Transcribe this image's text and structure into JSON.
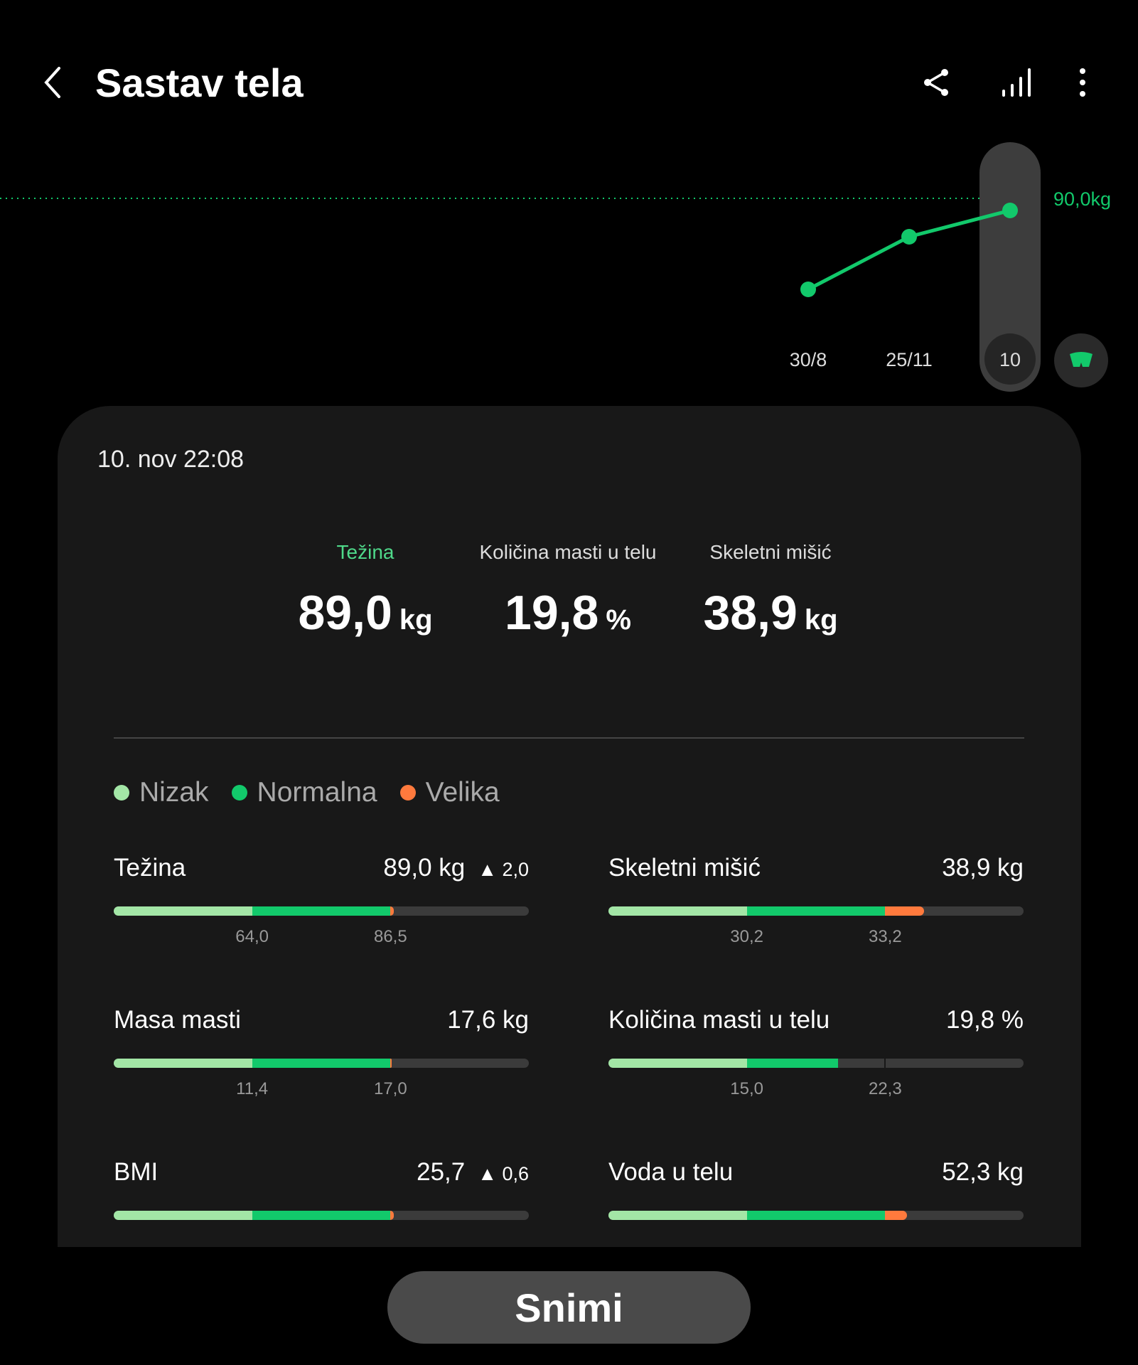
{
  "header": {
    "title": "Sastav tela",
    "icons": [
      "back-arrow-icon",
      "share-icon",
      "bar-chart-icon",
      "more-vertical-icon"
    ]
  },
  "chart_data": {
    "type": "line",
    "x": [
      "30/8",
      "25/11",
      "10"
    ],
    "selected": "10",
    "reference_label": "90,0kg",
    "reference": 90.0,
    "points_relative": "increasing",
    "color": "#12c96b"
  },
  "card": {
    "date": "10. nov 22:08",
    "summary": [
      {
        "label": "Težina",
        "value": "89,0",
        "unit": "kg",
        "active": true
      },
      {
        "label": "Količina masti u telu",
        "value": "19,8",
        "unit": "%"
      },
      {
        "label": "Skeletni mišić",
        "value": "38,9",
        "unit": "kg"
      }
    ],
    "legend": [
      {
        "label": "Nizak",
        "color": "#a3e6a6"
      },
      {
        "label": "Normalna",
        "color": "#12c96b"
      },
      {
        "label": "Velika",
        "color": "#ff7a3d"
      }
    ],
    "metrics": [
      {
        "name": "Težina",
        "value": "89,0 kg",
        "delta": "▲ 2,0",
        "fill": 0.675,
        "ticks": [
          "64,0",
          "86,5"
        ]
      },
      {
        "name": "Skeletni mišić",
        "value": "38,9 kg",
        "delta": "",
        "fill": 0.76,
        "ticks": [
          "30,2",
          "33,2"
        ]
      },
      {
        "name": "Masa masti",
        "value": "17,6 kg",
        "delta": "",
        "fill": 0.67,
        "ticks": [
          "11,4",
          "17,0"
        ]
      },
      {
        "name": "Količina masti u telu",
        "value": "19,8 %",
        "delta": "",
        "fill": 0.553,
        "ticks": [
          "15,0",
          "22,3"
        ],
        "marker": true
      },
      {
        "name": "BMI",
        "value": "25,7",
        "delta": "▲ 0,6",
        "fill": 0.675,
        "ticks": [
          "",
          ""
        ]
      },
      {
        "name": "Voda u telu",
        "value": "52,3 kg",
        "delta": "",
        "fill": 0.72,
        "ticks": [
          "",
          ""
        ]
      }
    ]
  },
  "button": {
    "label": "Snimi"
  },
  "colors": {
    "low": "#a3e6a6",
    "normal": "#12c96b",
    "high": "#ff7a3d",
    "track": "#3b3b3b"
  }
}
